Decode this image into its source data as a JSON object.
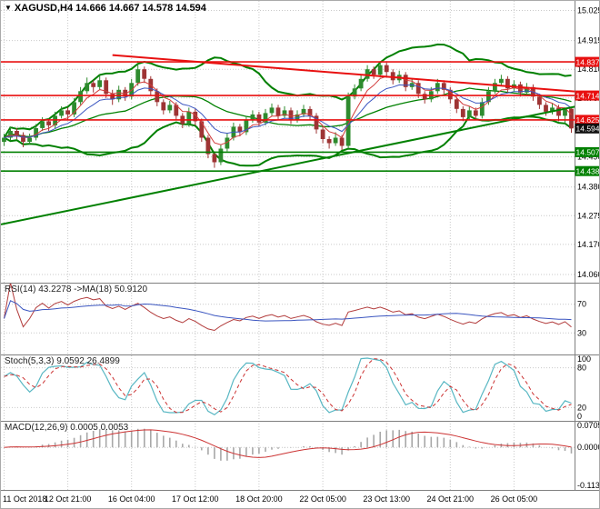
{
  "window": {
    "dropdown_glyph": "▼",
    "title": "XAGUSD,H4 14.666 14.667 14.578 14.594"
  },
  "chart_data": {
    "type": "candlestick",
    "symbol": "XAGUSD",
    "timeframe": "H4",
    "ohlc_display": {
      "open": "14.666",
      "high": "14.667",
      "low": "14.578",
      "close": "14.594"
    },
    "price_range": {
      "max": 15.06,
      "min": 14.03
    },
    "price_axis_ticks": [
      15.025,
      14.915,
      14.81,
      14.705,
      14.6,
      14.49,
      14.38,
      14.275,
      14.17,
      14.06
    ],
    "x_labels": [
      "11 Oct 2018",
      "12 Oct 21:00",
      "16 Oct 04:00",
      "17 Oct 12:00",
      "18 Oct 20:00",
      "22 Oct 05:00",
      "23 Oct 13:00",
      "24 Oct 21:00",
      "26 Oct 05:00"
    ],
    "x_label_bars": [
      0,
      10,
      20,
      30,
      40,
      50,
      60,
      70,
      80
    ],
    "candles": [
      [
        14.545,
        14.575,
        14.53,
        14.56
      ],
      [
        14.56,
        14.6,
        14.55,
        14.585
      ],
      [
        14.585,
        14.595,
        14.555,
        14.57
      ],
      [
        14.57,
        14.58,
        14.525,
        14.545
      ],
      [
        14.545,
        14.575,
        14.535,
        14.56
      ],
      [
        14.56,
        14.61,
        14.55,
        14.595
      ],
      [
        14.595,
        14.635,
        14.585,
        14.62
      ],
      [
        14.62,
        14.63,
        14.585,
        14.605
      ],
      [
        14.605,
        14.655,
        14.595,
        14.64
      ],
      [
        14.64,
        14.675,
        14.63,
        14.66
      ],
      [
        14.66,
        14.67,
        14.625,
        14.645
      ],
      [
        14.645,
        14.705,
        14.635,
        14.69
      ],
      [
        14.69,
        14.745,
        14.68,
        14.73
      ],
      [
        14.73,
        14.78,
        14.72,
        14.76
      ],
      [
        14.76,
        14.77,
        14.725,
        14.745
      ],
      [
        14.745,
        14.79,
        14.735,
        14.77
      ],
      [
        14.77,
        14.78,
        14.705,
        14.72
      ],
      [
        14.72,
        14.735,
        14.68,
        14.7
      ],
      [
        14.7,
        14.75,
        14.69,
        14.735
      ],
      [
        14.735,
        14.745,
        14.695,
        14.71
      ],
      [
        14.71,
        14.775,
        14.7,
        14.76
      ],
      [
        14.76,
        14.84,
        14.75,
        14.81
      ],
      [
        14.81,
        14.82,
        14.76,
        14.775
      ],
      [
        14.775,
        14.785,
        14.715,
        14.73
      ],
      [
        14.73,
        14.74,
        14.675,
        14.69
      ],
      [
        14.69,
        14.7,
        14.645,
        14.66
      ],
      [
        14.66,
        14.695,
        14.65,
        14.68
      ],
      [
        14.68,
        14.69,
        14.625,
        14.64
      ],
      [
        14.64,
        14.65,
        14.595,
        14.61
      ],
      [
        14.61,
        14.67,
        14.6,
        14.655
      ],
      [
        14.655,
        14.665,
        14.605,
        14.62
      ],
      [
        14.62,
        14.63,
        14.545,
        14.56
      ],
      [
        14.56,
        14.57,
        14.485,
        14.5
      ],
      [
        14.5,
        14.51,
        14.45,
        14.47
      ],
      [
        14.47,
        14.535,
        14.46,
        14.52
      ],
      [
        14.52,
        14.575,
        14.51,
        14.56
      ],
      [
        14.56,
        14.615,
        14.55,
        14.6
      ],
      [
        14.6,
        14.61,
        14.565,
        14.58
      ],
      [
        14.58,
        14.64,
        14.57,
        14.625
      ],
      [
        14.625,
        14.66,
        14.615,
        14.645
      ],
      [
        14.645,
        14.655,
        14.6,
        14.615
      ],
      [
        14.615,
        14.665,
        14.605,
        14.65
      ],
      [
        14.65,
        14.685,
        14.64,
        14.67
      ],
      [
        14.67,
        14.68,
        14.625,
        14.64
      ],
      [
        14.64,
        14.675,
        14.63,
        14.66
      ],
      [
        14.66,
        14.67,
        14.61,
        14.625
      ],
      [
        14.625,
        14.66,
        14.615,
        14.645
      ],
      [
        14.645,
        14.68,
        14.635,
        14.665
      ],
      [
        14.665,
        14.675,
        14.625,
        14.64
      ],
      [
        14.64,
        14.65,
        14.575,
        14.59
      ],
      [
        14.59,
        14.6,
        14.54,
        14.555
      ],
      [
        14.555,
        14.565,
        14.52,
        14.54
      ],
      [
        14.54,
        14.58,
        14.53,
        14.56
      ],
      [
        14.56,
        14.57,
        14.515,
        14.53
      ],
      [
        14.53,
        14.725,
        14.52,
        14.71
      ],
      [
        14.71,
        14.755,
        14.7,
        14.74
      ],
      [
        14.74,
        14.79,
        14.73,
        14.775
      ],
      [
        14.775,
        14.825,
        14.765,
        14.81
      ],
      [
        14.81,
        14.82,
        14.775,
        14.79
      ],
      [
        14.79,
        14.84,
        14.78,
        14.825
      ],
      [
        14.825,
        14.835,
        14.785,
        14.8
      ],
      [
        14.8,
        14.81,
        14.755,
        14.77
      ],
      [
        14.77,
        14.805,
        14.76,
        14.79
      ],
      [
        14.79,
        14.8,
        14.73,
        14.745
      ],
      [
        14.745,
        14.775,
        14.735,
        14.76
      ],
      [
        14.76,
        14.77,
        14.705,
        14.72
      ],
      [
        14.72,
        14.73,
        14.685,
        14.7
      ],
      [
        14.7,
        14.745,
        14.69,
        14.73
      ],
      [
        14.73,
        14.775,
        14.72,
        14.76
      ],
      [
        14.76,
        14.77,
        14.72,
        14.735
      ],
      [
        14.735,
        14.745,
        14.685,
        14.7
      ],
      [
        14.7,
        14.71,
        14.65,
        14.665
      ],
      [
        14.665,
        14.675,
        14.62,
        14.635
      ],
      [
        14.635,
        14.675,
        14.625,
        14.66
      ],
      [
        14.66,
        14.67,
        14.625,
        14.64
      ],
      [
        14.64,
        14.705,
        14.63,
        14.69
      ],
      [
        14.69,
        14.745,
        14.68,
        14.73
      ],
      [
        14.73,
        14.775,
        14.72,
        14.76
      ],
      [
        14.76,
        14.79,
        14.75,
        14.775
      ],
      [
        14.775,
        14.785,
        14.725,
        14.74
      ],
      [
        14.74,
        14.77,
        14.73,
        14.755
      ],
      [
        14.755,
        14.765,
        14.71,
        14.725
      ],
      [
        14.725,
        14.76,
        14.715,
        14.745
      ],
      [
        14.745,
        14.755,
        14.695,
        14.71
      ],
      [
        14.71,
        14.72,
        14.665,
        14.68
      ],
      [
        14.68,
        14.69,
        14.64,
        14.655
      ],
      [
        14.655,
        14.685,
        14.645,
        14.67
      ],
      [
        14.67,
        14.68,
        14.62,
        14.64
      ],
      [
        14.64,
        14.67,
        14.61,
        14.666
      ],
      [
        14.666,
        14.667,
        14.578,
        14.594
      ]
    ],
    "h_lines": [
      {
        "price": 14.837,
        "label": "14.837",
        "color": "#e81010"
      },
      {
        "price": 14.714,
        "label": "14.714",
        "color": "#e81010"
      },
      {
        "price": 14.625,
        "label": "14.625",
        "color": "#e81010"
      },
      {
        "price": 14.507,
        "label": "14.507",
        "color": "#008000"
      },
      {
        "price": 14.438,
        "label": "14.438",
        "color": "#008000"
      }
    ],
    "trend_lines": [
      {
        "b1": -0.5,
        "p1": 14.243,
        "b2": 90.5,
        "p2": 14.678,
        "color": "#008000",
        "width": 2
      },
      {
        "b1": 17,
        "p1": 14.862,
        "b2": 90.5,
        "p2": 14.727,
        "color": "#e81010",
        "width": 2
      }
    ],
    "current_price": {
      "value": 14.594,
      "label": "14.594",
      "badge_color": "#101010"
    },
    "colors": {
      "background": "#ffffff",
      "grid": "#c9c9c9",
      "separator": "#7f7f7f",
      "candle_up": "#2e8b2e",
      "candle_down": "#9e3434",
      "bands": "#008000",
      "ma_fast": "#d23b3b",
      "ma_slow": "#3a55c0",
      "axis_text": "#000000"
    },
    "indicators": {
      "bollinger": {
        "period": 20,
        "deviation": 2,
        "color": "#008000"
      },
      "rsi": {
        "label": "RSI(14) 43.2278 ->MA(18) 50.9120",
        "period": 14,
        "ma_period": 18,
        "levels": [
          70,
          30
        ],
        "axis_labels": [
          "70",
          "30"
        ],
        "line_color": "#b23b3b",
        "ma_color": "#3a55c0"
      },
      "stoch": {
        "label": "Stoch(5,3,3) 9.0592 26.4899",
        "levels": [
          80,
          20
        ],
        "axis_labels": [
          "100",
          "80",
          "20",
          "0"
        ],
        "k_color": "#58b7c3",
        "d_color": "#cc3333"
      },
      "macd": {
        "label": "MACD(12,26,9) 0.0005 0.0053",
        "range": {
          "max": 0.0705,
          "min": -0.1132
        },
        "axis_labels": [
          "0.0705",
          "0.0000",
          "-0.1132"
        ],
        "hist_color": "#a8a8a8",
        "signal_color": "#cc3333"
      }
    }
  }
}
